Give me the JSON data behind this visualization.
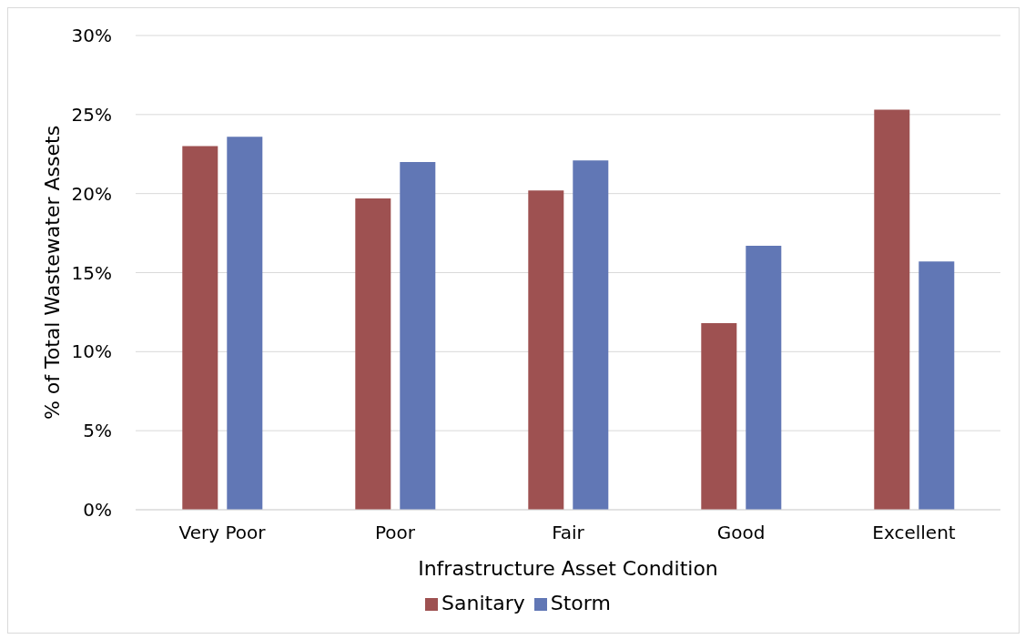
{
  "chart_data": {
    "type": "bar",
    "xlabel": "Infrastructure Asset Condition",
    "ylabel": "% of Total Wastewater Assets",
    "categories": [
      "Very Poor",
      "Poor",
      "Fair",
      "Good",
      "Excellent"
    ],
    "series": [
      {
        "name": "Sanitary",
        "color": "#9e5151",
        "values": [
          23.0,
          19.7,
          20.2,
          11.8,
          25.3
        ]
      },
      {
        "name": "Storm",
        "color": "#6177b5",
        "values": [
          23.6,
          22.0,
          22.1,
          16.7,
          15.7
        ]
      }
    ],
    "ylim": [
      0,
      30
    ],
    "yticks": [
      {
        "value": 0,
        "label": "0%"
      },
      {
        "value": 5,
        "label": "5%"
      },
      {
        "value": 10,
        "label": "10%"
      },
      {
        "value": 15,
        "label": "15%"
      },
      {
        "value": 20,
        "label": "20%"
      },
      {
        "value": 25,
        "label": "25%"
      },
      {
        "value": 30,
        "label": "30%"
      }
    ],
    "grid": "y",
    "legend": "bottom"
  }
}
